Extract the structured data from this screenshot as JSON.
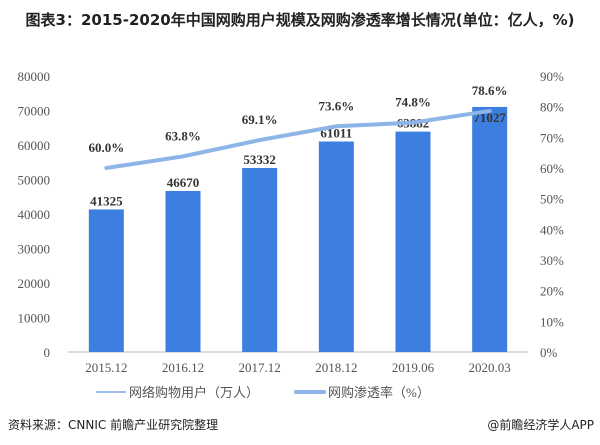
{
  "chart_data": {
    "type": "bar+line",
    "title": "图表3：2015-2020年中国网购用户规模及网购渗透率增长情况(单位：亿人，%)",
    "categories": [
      "2015.12",
      "2016.12",
      "2017.12",
      "2018.12",
      "2019.06",
      "2020.03"
    ],
    "series": [
      {
        "name": "网络购物用户（万人）",
        "type": "bar",
        "axis": "left",
        "values": [
          41325,
          46670,
          53332,
          61011,
          63882,
          71027
        ],
        "labels": [
          "41325",
          "46670",
          "53332",
          "61011",
          "63882",
          "71027"
        ]
      },
      {
        "name": "网购渗透率（%）",
        "type": "line",
        "axis": "right",
        "values": [
          60.0,
          63.8,
          69.1,
          73.6,
          74.8,
          78.6
        ],
        "labels": [
          "60.0%",
          "63.8%",
          "69.1%",
          "73.6%",
          "74.8%",
          "78.6%"
        ]
      }
    ],
    "y_left": {
      "range": [
        0,
        80000
      ],
      "ticks": [
        "0",
        "10000",
        "20000",
        "30000",
        "40000",
        "50000",
        "60000",
        "70000",
        "80000"
      ]
    },
    "y_right": {
      "range": [
        0,
        90
      ],
      "ticks": [
        "0%",
        "10%",
        "20%",
        "30%",
        "40%",
        "50%",
        "60%",
        "70%",
        "80%",
        "90%"
      ]
    },
    "legend_position": "bottom",
    "grid": false,
    "colors": {
      "bar": "#3d7fe0",
      "line": "#8db5e8"
    }
  },
  "footer": {
    "source": "资料来源：CNNIC 前瞻产业研究院整理",
    "credit": "@前瞻经济学人APP"
  }
}
